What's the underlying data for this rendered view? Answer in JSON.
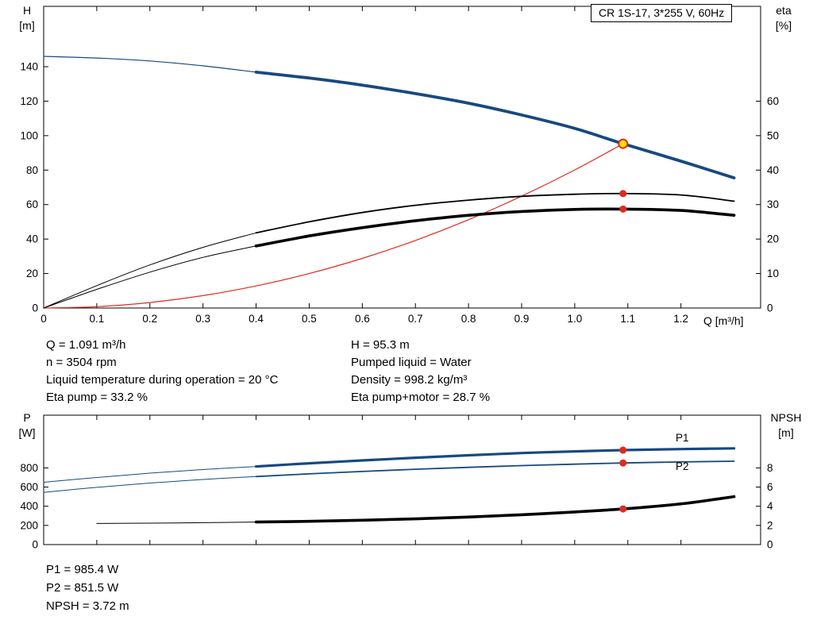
{
  "colors": {
    "blue": "#17497f",
    "red": "#e02a20",
    "black": "#000000",
    "yellow": "#ffe300",
    "text": "#000000"
  },
  "axis_labels": {
    "h": "H",
    "h_unit": "[m]",
    "eta": "eta",
    "eta_unit": "[%]",
    "q": "Q [m³/h]",
    "p": "P",
    "p_unit": "[W]",
    "npsh": "NPSH",
    "npsh_unit": "[m]"
  },
  "results_top": {
    "left": [
      "Q = 1.091 m³/h",
      "n = 3504 rpm",
      "Liquid temperature during operation = 20 °C",
      "Eta pump = 33.2 %"
    ],
    "right": [
      "H = 95.3 m",
      "Pumped liquid = Water",
      "Density = 998.2 kg/m³",
      "Eta pump+motor = 28.7 %"
    ]
  },
  "results_bottom": [
    "P1 = 985.4 W",
    "P2 = 851.5 W",
    "NPSH = 3.72 m"
  ],
  "chart_data": [
    {
      "type": "line",
      "title": "CR 1S-17, 3*255 V, 60Hz",
      "xlabel": "Q [m³/h]",
      "ylabel_left": "H [m]",
      "ylabel_right": "eta [%]",
      "xlim": [
        0,
        1.35
      ],
      "ylim_left": [
        0,
        175
      ],
      "ylim_right": [
        0,
        87.5
      ],
      "grid": false,
      "legend_position": "none",
      "show_xtick_labels": true,
      "xticks": [
        0,
        0.1,
        0.2,
        0.3,
        0.4,
        0.5,
        0.6,
        0.7,
        0.8,
        0.9,
        1.0,
        1.1,
        1.2
      ],
      "xtick_labels": [
        "0",
        "0.1",
        "0.2",
        "0.3",
        "0.4",
        "0.5",
        "0.6",
        "0.7",
        "0.8",
        "0.9",
        "1.0",
        "1.1",
        "1.2"
      ],
      "yticks_left": [
        0,
        20,
        40,
        60,
        80,
        100,
        120,
        140
      ],
      "yticks_right": [
        0,
        10,
        20,
        30,
        40,
        50,
        60
      ],
      "series": [
        {
          "name": "h-curve-lead",
          "axis": "left",
          "color": "blue",
          "width": 1.2,
          "points": [
            [
              0,
              146
            ],
            [
              0.1,
              145
            ],
            [
              0.2,
              143.3
            ],
            [
              0.3,
              140.5
            ],
            [
              0.4,
              136.8
            ]
          ]
        },
        {
          "name": "h-curve",
          "axis": "left",
          "color": "blue",
          "width": 3.8,
          "points": [
            [
              0.4,
              136.8
            ],
            [
              0.5,
              133.4
            ],
            [
              0.6,
              129.3
            ],
            [
              0.7,
              124.4
            ],
            [
              0.8,
              118.8
            ],
            [
              0.9,
              112.0
            ],
            [
              1.0,
              104.2
            ],
            [
              1.091,
              95.3
            ],
            [
              1.2,
              85.2
            ],
            [
              1.3,
              75.5
            ]
          ]
        },
        {
          "name": "system-curve",
          "axis": "left",
          "color": "red",
          "width": 1.2,
          "points": [
            [
              0,
              0
            ],
            [
              0.1,
              0.8
            ],
            [
              0.2,
              3.2
            ],
            [
              0.3,
              7.2
            ],
            [
              0.4,
              12.8
            ],
            [
              0.5,
              20.0
            ],
            [
              0.6,
              28.8
            ],
            [
              0.7,
              39.2
            ],
            [
              0.8,
              51.2
            ],
            [
              0.9,
              64.9
            ],
            [
              1.0,
              80.1
            ],
            [
              1.091,
              95.3
            ]
          ]
        },
        {
          "name": "eta-pump-curve-lead",
          "axis": "right",
          "color": "black",
          "width": 1,
          "points": [
            [
              0,
              0
            ],
            [
              0.1,
              6.5
            ],
            [
              0.2,
              12.5
            ],
            [
              0.3,
              17.6
            ],
            [
              0.4,
              21.8
            ]
          ]
        },
        {
          "name": "eta-pump-curve",
          "axis": "right",
          "color": "black",
          "width": 1.8,
          "points": [
            [
              0.4,
              21.8
            ],
            [
              0.5,
              25.0
            ],
            [
              0.6,
              27.7
            ],
            [
              0.7,
              29.8
            ],
            [
              0.8,
              31.3
            ],
            [
              0.9,
              32.4
            ],
            [
              1.0,
              33.0
            ],
            [
              1.091,
              33.2
            ],
            [
              1.2,
              32.8
            ],
            [
              1.3,
              31.0
            ]
          ]
        },
        {
          "name": "eta-pump-motor-curve-lead",
          "axis": "right",
          "color": "black",
          "width": 1,
          "points": [
            [
              0,
              0
            ],
            [
              0.1,
              5.4
            ],
            [
              0.2,
              10.4
            ],
            [
              0.3,
              14.7
            ],
            [
              0.4,
              18.0
            ]
          ]
        },
        {
          "name": "eta-pump-motor-curve",
          "axis": "right",
          "color": "black",
          "width": 3.6,
          "points": [
            [
              0.4,
              18.0
            ],
            [
              0.5,
              20.9
            ],
            [
              0.6,
              23.3
            ],
            [
              0.7,
              25.3
            ],
            [
              0.8,
              26.9
            ],
            [
              0.9,
              28.0
            ],
            [
              1.0,
              28.6
            ],
            [
              1.091,
              28.7
            ],
            [
              1.2,
              28.3
            ],
            [
              1.3,
              26.9
            ]
          ]
        }
      ],
      "markers": [
        {
          "name": "eta-pump-point",
          "x": 1.091,
          "y": 33.2,
          "axis": "right",
          "r": 4.5,
          "fill": "red",
          "interactable": false
        },
        {
          "name": "eta-pump-motor-point",
          "x": 1.091,
          "y": 28.7,
          "axis": "right",
          "r": 4.5,
          "fill": "red",
          "interactable": false
        },
        {
          "name": "duty-point",
          "x": 1.091,
          "y": 95.3,
          "axis": "left",
          "r": 5.5,
          "fill": "yellow",
          "stroke": "red",
          "stroke_width": 2,
          "interactable": true
        }
      ],
      "labels": []
    },
    {
      "type": "line",
      "title": "",
      "xlabel": "",
      "ylabel_left": "P [W]",
      "ylabel_right": "NPSH [m]",
      "xlim": [
        0,
        1.35
      ],
      "ylim_left": [
        0,
        1350
      ],
      "ylim_right": [
        0,
        13.5
      ],
      "grid": false,
      "legend_position": "inline-right",
      "show_xtick_labels": false,
      "xticks": [
        0,
        0.1,
        0.2,
        0.3,
        0.4,
        0.5,
        0.6,
        0.7,
        0.8,
        0.9,
        1.0,
        1.1,
        1.2
      ],
      "xtick_labels": [],
      "yticks_left": [
        0,
        200,
        400,
        600,
        800
      ],
      "yticks_right": [
        0,
        2,
        4,
        6,
        8
      ],
      "series": [
        {
          "name": "p1-curve-lead",
          "axis": "left",
          "color": "blue",
          "width": 1,
          "points": [
            [
              0,
              650
            ],
            [
              0.1,
              700
            ],
            [
              0.2,
              745
            ],
            [
              0.3,
              783
            ],
            [
              0.4,
              815
            ]
          ]
        },
        {
          "name": "p1-curve",
          "axis": "left",
          "color": "blue",
          "width": 3.2,
          "points": [
            [
              0.4,
              815
            ],
            [
              0.5,
              848
            ],
            [
              0.6,
              878
            ],
            [
              0.7,
              906
            ],
            [
              0.8,
              932
            ],
            [
              0.9,
              955
            ],
            [
              1.0,
              972
            ],
            [
              1.091,
              985.4
            ],
            [
              1.2,
              996
            ],
            [
              1.3,
              1004
            ]
          ]
        },
        {
          "name": "p2-curve-lead",
          "axis": "left",
          "color": "blue",
          "width": 1,
          "points": [
            [
              0,
              545
            ],
            [
              0.1,
              597
            ],
            [
              0.2,
              642
            ],
            [
              0.3,
              679
            ],
            [
              0.4,
              710
            ]
          ]
        },
        {
          "name": "p2-curve",
          "axis": "left",
          "color": "blue",
          "width": 1.8,
          "points": [
            [
              0.4,
              710
            ],
            [
              0.5,
              738
            ],
            [
              0.6,
              763
            ],
            [
              0.7,
              786
            ],
            [
              0.8,
              806
            ],
            [
              0.9,
              824
            ],
            [
              1.0,
              839
            ],
            [
              1.091,
              851.5
            ],
            [
              1.2,
              862
            ],
            [
              1.3,
              870
            ]
          ]
        },
        {
          "name": "npsh-curve-lead",
          "axis": "right",
          "color": "black",
          "width": 1,
          "points": [
            [
              0.1,
              2.2
            ],
            [
              0.2,
              2.24
            ],
            [
              0.3,
              2.29
            ],
            [
              0.4,
              2.35
            ]
          ]
        },
        {
          "name": "npsh-curve",
          "axis": "right",
          "color": "black",
          "width": 3.6,
          "points": [
            [
              0.4,
              2.35
            ],
            [
              0.5,
              2.43
            ],
            [
              0.6,
              2.54
            ],
            [
              0.7,
              2.68
            ],
            [
              0.8,
              2.87
            ],
            [
              0.9,
              3.11
            ],
            [
              1.0,
              3.4
            ],
            [
              1.091,
              3.72
            ],
            [
              1.2,
              4.25
            ],
            [
              1.3,
              5.0
            ]
          ]
        }
      ],
      "markers": [
        {
          "name": "p1-point",
          "x": 1.091,
          "y": 985.4,
          "axis": "left",
          "r": 4.5,
          "fill": "red",
          "interactable": false
        },
        {
          "name": "p2-point",
          "x": 1.091,
          "y": 851.5,
          "axis": "left",
          "r": 4.5,
          "fill": "red",
          "interactable": false
        },
        {
          "name": "npsh-point",
          "x": 1.091,
          "y": 3.72,
          "axis": "right",
          "r": 4.5,
          "fill": "red",
          "interactable": false
        }
      ],
      "labels": [
        {
          "text": "P1",
          "x": 1.19,
          "y": 1075,
          "axis": "left",
          "color": "blue"
        },
        {
          "text": "P2",
          "x": 1.19,
          "y": 780,
          "axis": "left",
          "color": "blue"
        }
      ]
    }
  ]
}
